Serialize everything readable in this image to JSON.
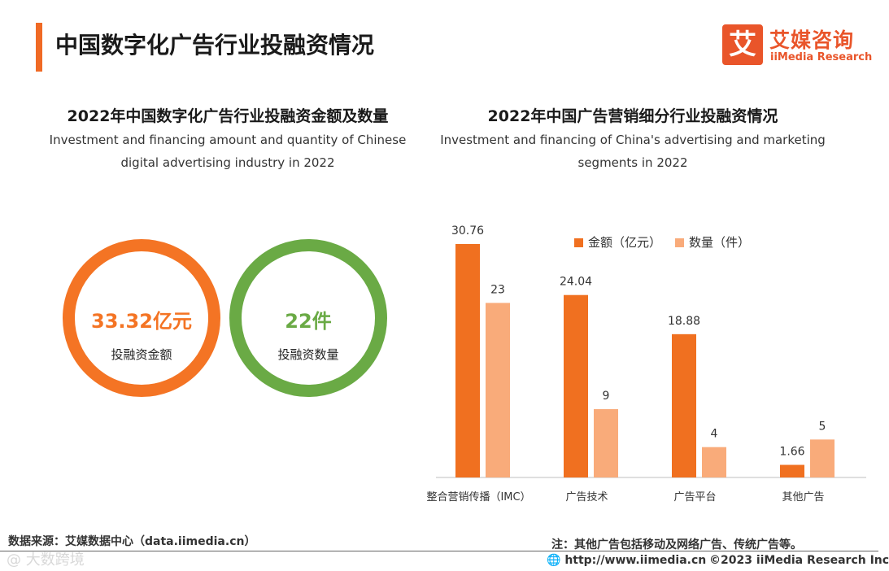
{
  "header": {
    "title": "中国数字化广告行业投融资情况",
    "logo_mark": "艾",
    "logo_cn": "艾媒咨询",
    "logo_en": "iiMedia Research"
  },
  "left": {
    "title": "2022年中国数字化广告行业投融资金额及数量",
    "subtitle": "Investment and financing amount and quantity of Chinese digital advertising industry in 2022",
    "rings": [
      {
        "value": "33.32亿元",
        "label": "投融资金额",
        "color": "#f47424"
      },
      {
        "value": "22件",
        "label": "投融资数量",
        "color": "#6aaa45"
      }
    ]
  },
  "right": {
    "title": "2022年中国广告营销细分行业投融资情况",
    "subtitle": "Investment and financing of China's advertising and marketing segments in 2022"
  },
  "chart_data": {
    "type": "bar",
    "title": "2022年中国广告营销细分行业投融资情况",
    "categories": [
      "整合营销传播（IMC）",
      "广告技术",
      "广告平台",
      "其他广告"
    ],
    "series": [
      {
        "name": "金额（亿元）",
        "values": [
          30.76,
          24.04,
          18.88,
          1.66
        ],
        "color": "#f07020"
      },
      {
        "name": "数量（件）",
        "values": [
          23,
          9,
          4,
          5
        ],
        "color": "#f9ab7a"
      }
    ],
    "legend_position": "top-right",
    "grid": false
  },
  "footer": {
    "source": "数据来源：艾媒数据中心（data.iimedia.cn）",
    "note": "注：其他广告包括移动及网络广告、传统广告等。",
    "url": "http://www.iimedia.cn",
    "copyright": "©2023  iiMedia Research  Inc",
    "watermark": "@ 大数跨境"
  }
}
